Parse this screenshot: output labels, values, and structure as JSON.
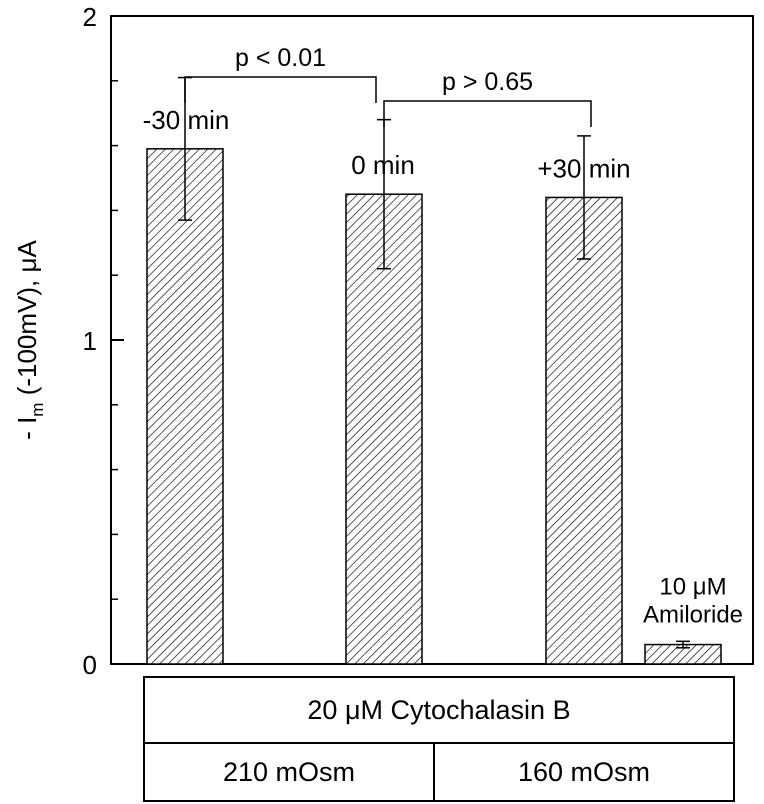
{
  "chart_data": {
    "type": "bar",
    "ylabel_prefix": "- I",
    "ylabel_subscript": "m",
    "ylabel_suffix": " (-100mV), μA",
    "ylim": [
      0,
      2
    ],
    "yticks": [
      {
        "value": 0,
        "label": "0"
      },
      {
        "value": 1,
        "label": "1"
      },
      {
        "value": 2,
        "label": "2"
      }
    ],
    "minor_ticks": [
      0.2,
      0.4,
      0.6,
      0.8,
      1.2,
      1.4,
      1.6,
      1.8
    ],
    "grid": false,
    "bars": [
      {
        "value": 1.59,
        "error": 0.22,
        "label": "-30 min",
        "label_lines": []
      },
      {
        "value": 1.45,
        "error": 0.23,
        "label": "0 min",
        "label_lines": []
      },
      {
        "value": 1.44,
        "error": 0.19,
        "label": "+30 min",
        "label_lines": []
      },
      {
        "value": 0.06,
        "error": 0.01,
        "label": "",
        "label_lines": [
          "10 μM",
          "Amiloride"
        ]
      }
    ],
    "comparisons": [
      {
        "from": 0,
        "to": 1,
        "text": "p < 0.01"
      },
      {
        "from": 1,
        "to": 2,
        "text": "p > 0.65"
      }
    ]
  },
  "conditions": {
    "treatment": "20 μM Cytochalasin B",
    "groups": [
      "210 mOsm",
      "160 mOsm"
    ]
  }
}
